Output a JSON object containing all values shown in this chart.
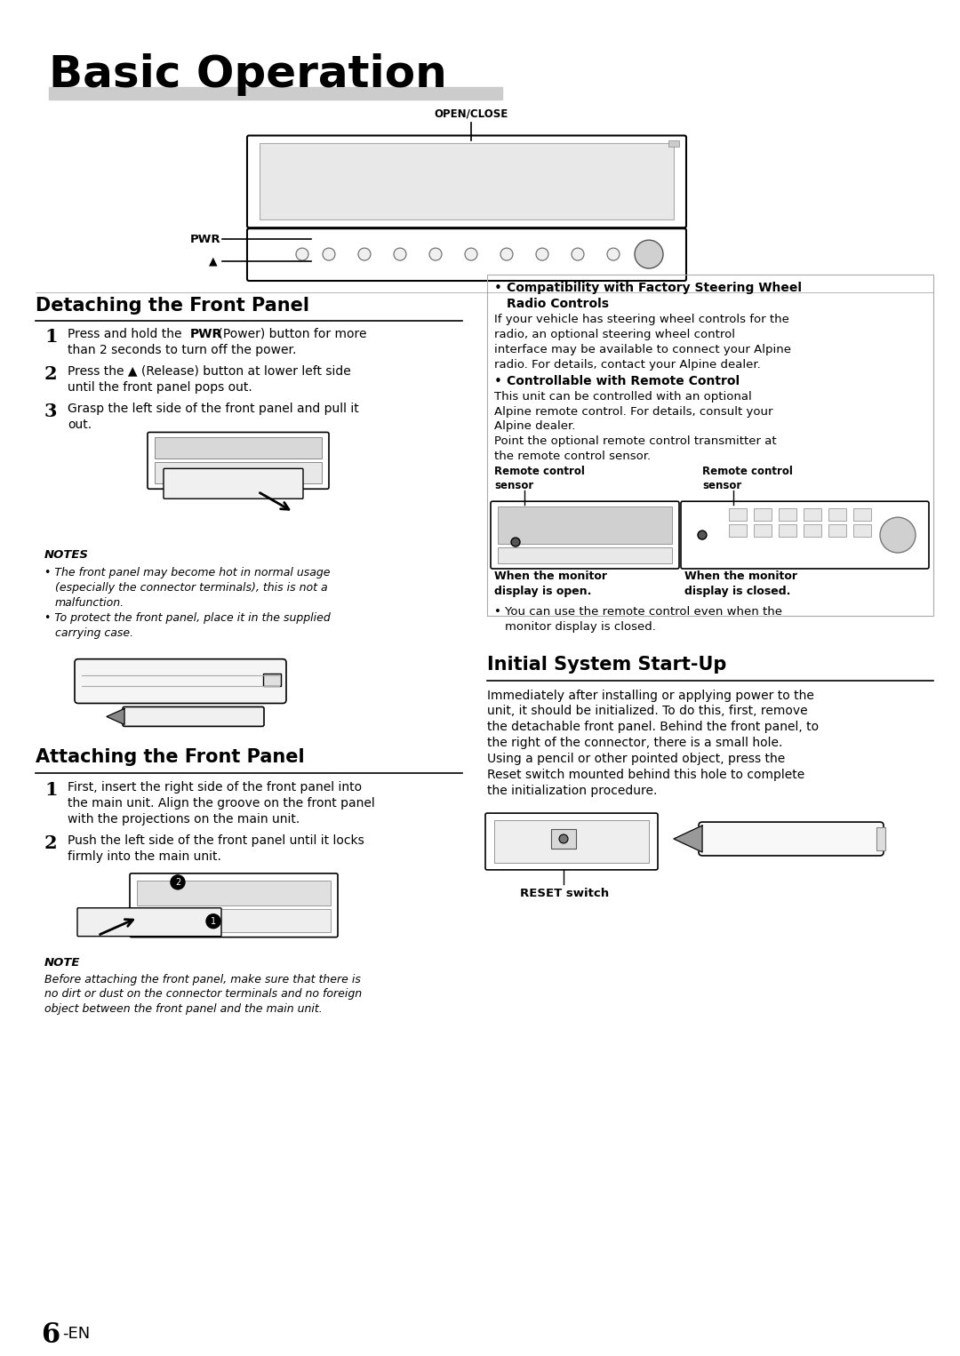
{
  "bg_color": "#ffffff",
  "title": "Basic Operation",
  "page_number": "6",
  "page_suffix": "-EN"
}
